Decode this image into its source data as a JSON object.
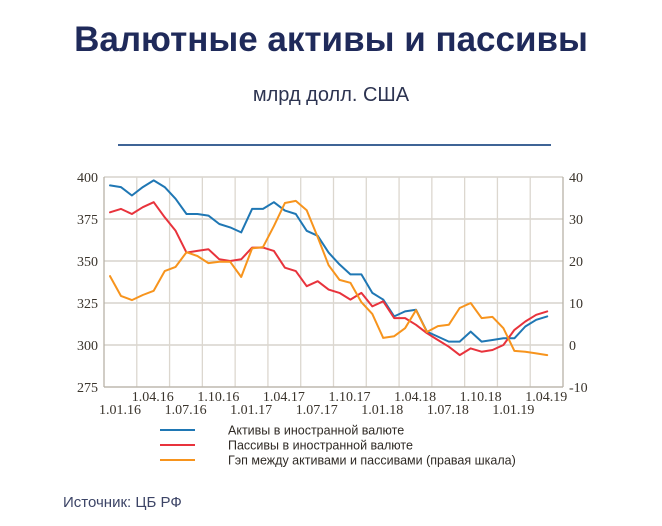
{
  "header": {
    "title": "Валютные активы и пассивы",
    "subtitle": "млрд долл. США"
  },
  "footer": {
    "source": "Источник: ЦБ РФ"
  },
  "chart_data": {
    "type": "line",
    "title": "Валютные активы и пассивы",
    "subtitle": "млрд долл. США",
    "xlabel": "",
    "ylabel": "",
    "y_left": {
      "range": [
        275,
        400
      ],
      "ticks": [
        "400",
        "375",
        "350",
        "325",
        "300",
        "275"
      ]
    },
    "y_right": {
      "range": [
        -10,
        40
      ],
      "ticks": [
        "40",
        "30",
        "20",
        "10",
        "0",
        "-10"
      ]
    },
    "x_ticks_upper": [
      "1.04.16",
      "1.10.16",
      "1.04.17",
      "1.10.17",
      "1.04.18",
      "1.10.18",
      "1.04.19"
    ],
    "x_ticks_lower": [
      "1.01.16",
      "1.07.16",
      "1.01.17",
      "1.07.17",
      "1.01.18",
      "1.07.18",
      "1.01.19"
    ],
    "grid": true,
    "legend_position": "bottom",
    "x_start": "2016-01",
    "x_step": "month",
    "series": [
      {
        "name": "Активы в иностранной валюте",
        "axis": "left",
        "color": "#1f77b4",
        "values": [
          395,
          394,
          389,
          394,
          398,
          394,
          387,
          378,
          378,
          377,
          372,
          370,
          367,
          381,
          381,
          385,
          380,
          378,
          368,
          365,
          355,
          348,
          342,
          342,
          331,
          327,
          317,
          320,
          321,
          308,
          305,
          302,
          302,
          308,
          302,
          303,
          304,
          304,
          311,
          315,
          317
        ]
      },
      {
        "name": "Пассивы в иностранной валюте",
        "axis": "left",
        "color": "#e8333c",
        "values": [
          379,
          381,
          378,
          382,
          385,
          376,
          368,
          355,
          356,
          357,
          351,
          350,
          351,
          358,
          358,
          356,
          346,
          344,
          335,
          338,
          333,
          331,
          327,
          331,
          323,
          326,
          316,
          316,
          312,
          307,
          303,
          299,
          294,
          298,
          296,
          297,
          300,
          309,
          314,
          318,
          320
        ]
      },
      {
        "name": "Гэп между активами и пассивами (правая шкала)",
        "axis": "right",
        "color": "#f7941d",
        "values": [
          16.4,
          11.7,
          10.7,
          11.9,
          12.9,
          17.6,
          18.6,
          22.1,
          21.2,
          19.5,
          19.8,
          19.8,
          16.2,
          23.0,
          23.3,
          28.3,
          33.8,
          34.3,
          32.1,
          25.7,
          19.0,
          15.5,
          14.8,
          10.2,
          7.4,
          1.7,
          2.1,
          4.0,
          8.3,
          3.1,
          4.5,
          4.8,
          8.8,
          10.0,
          6.4,
          6.7,
          4.0,
          -1.4,
          -1.6,
          -2.0,
          -2.4
        ]
      }
    ]
  }
}
